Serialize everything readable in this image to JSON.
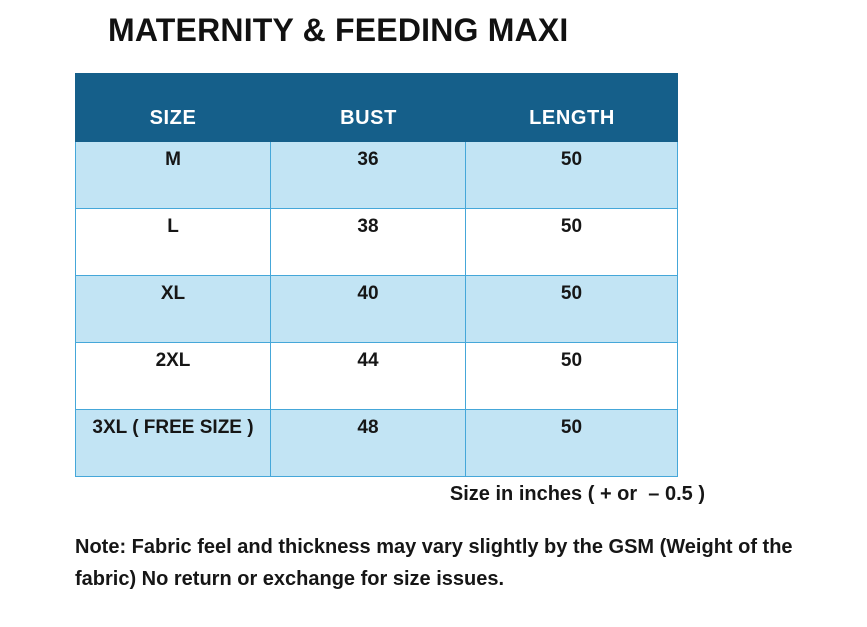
{
  "title": "MATERNITY & FEEDING MAXI",
  "size_chart": {
    "columns": [
      "SIZE",
      "BUST",
      "LENGTH"
    ],
    "rows": [
      {
        "size": "M",
        "bust": "36",
        "length": "50"
      },
      {
        "size": "L",
        "bust": "38",
        "length": "50"
      },
      {
        "size": "XL",
        "bust": "40",
        "length": "50"
      },
      {
        "size": "2XL",
        "bust": "44",
        "length": "50"
      },
      {
        "size": "3XL ( FREE SIZE )",
        "bust": "48",
        "length": "50"
      }
    ],
    "unit_note": "Size in inches ( + or  – 0.5 )"
  },
  "footnote": "Note: Fabric feel and thickness may vary slightly by the GSM (Weight of the fabric) No return or exchange for size issues.",
  "chart_data": {
    "type": "table",
    "title": "MATERNITY & FEEDING MAXI",
    "columns": [
      "SIZE",
      "BUST",
      "LENGTH"
    ],
    "rows": [
      [
        "M",
        "36",
        "50"
      ],
      [
        "L",
        "38",
        "50"
      ],
      [
        "XL",
        "40",
        "50"
      ],
      [
        "2XL",
        "44",
        "50"
      ],
      [
        "3XL ( FREE SIZE )",
        "48",
        "50"
      ]
    ],
    "units": "inches",
    "tolerance_note": "( + or – 0.5 )"
  },
  "colors": {
    "header_bg": "#155f8a",
    "header_text": "#ffffff",
    "row_alt_bg": "#c2e4f4",
    "row_bg": "#ffffff",
    "border": "#45a7d9",
    "text": "#161616"
  }
}
